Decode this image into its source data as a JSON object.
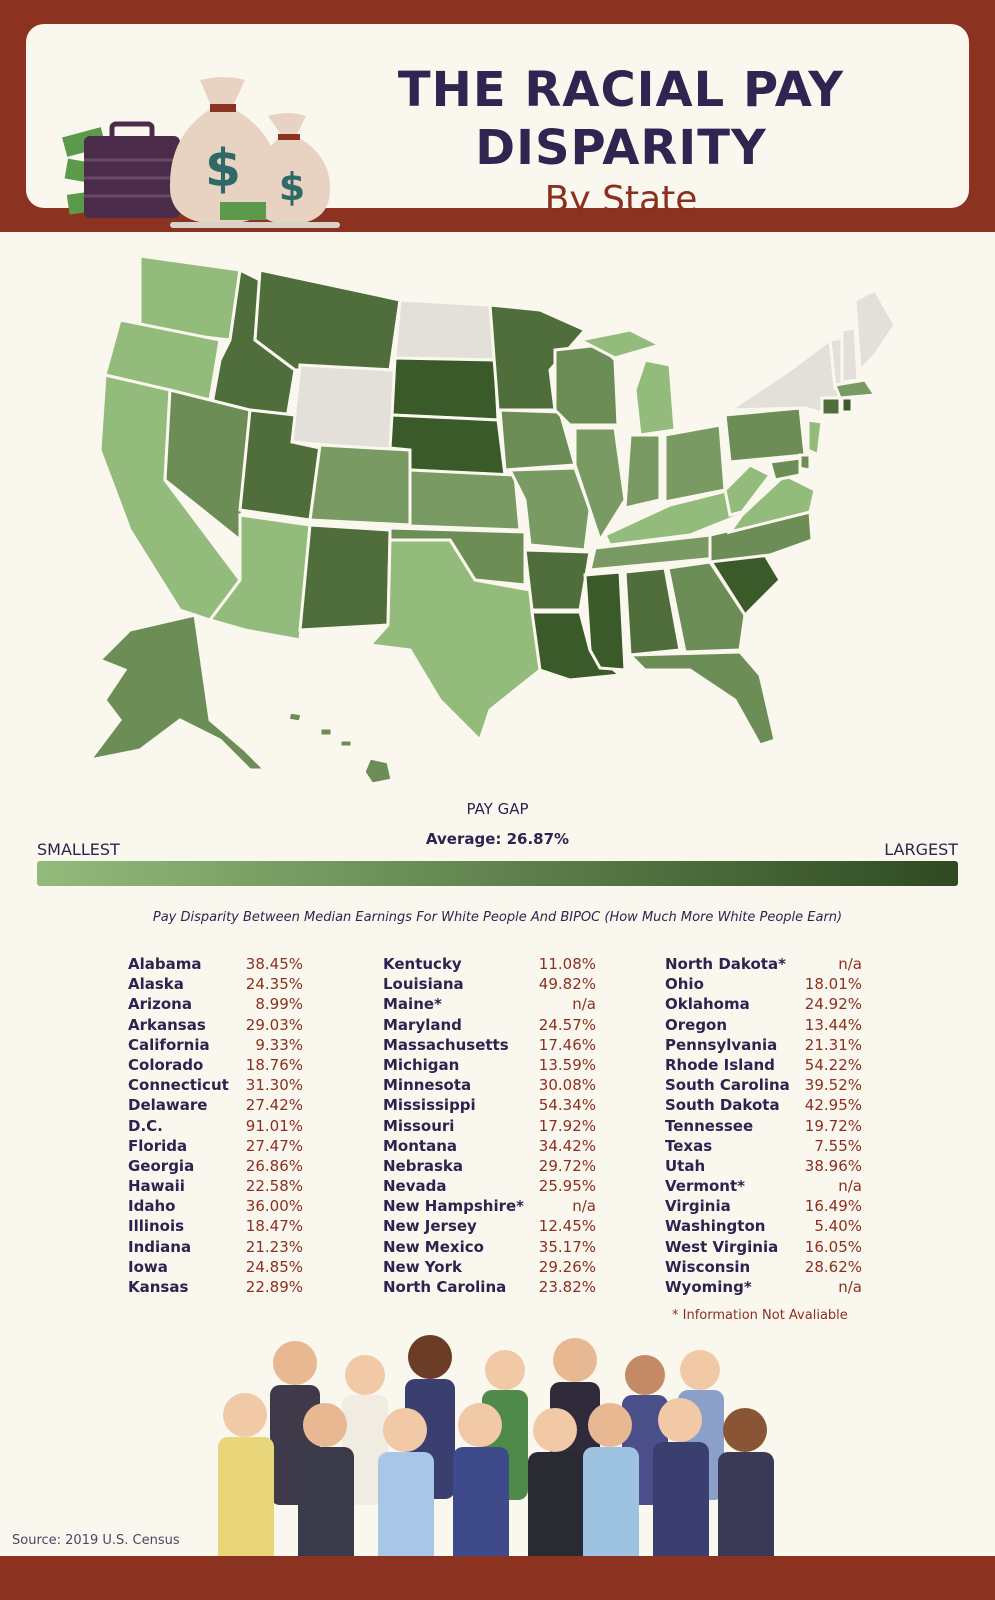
{
  "header": {
    "title_line1": "THE RACIAL PAY",
    "title_line2": "DISPARITY",
    "subtitle": "By State"
  },
  "legend": {
    "title": "PAY GAP",
    "average": "Average: 26.87%",
    "low_label": "SMALLEST",
    "high_label": "LARGEST",
    "low_color": "#93bb7b",
    "high_color": "#2f4a22",
    "na_color": "#e3e0d9"
  },
  "caption": "Pay Disparity Between Median Earnings For White People And BIPOC (How Much More White People Earn)",
  "states": [
    {
      "name": "Alabama",
      "value": "38.45%"
    },
    {
      "name": "Alaska",
      "value": "24.35%"
    },
    {
      "name": "Arizona",
      "value": "8.99%"
    },
    {
      "name": "Arkansas",
      "value": "29.03%"
    },
    {
      "name": "California",
      "value": "9.33%"
    },
    {
      "name": "Colorado",
      "value": "18.76%"
    },
    {
      "name": "Connecticut",
      "value": "31.30%"
    },
    {
      "name": "Delaware",
      "value": "27.42%"
    },
    {
      "name": "D.C.",
      "value": "91.01%"
    },
    {
      "name": "Florida",
      "value": "27.47%"
    },
    {
      "name": "Georgia",
      "value": "26.86%"
    },
    {
      "name": "Hawaii",
      "value": "22.58%"
    },
    {
      "name": "Idaho",
      "value": "36.00%"
    },
    {
      "name": "Illinois",
      "value": "18.47%"
    },
    {
      "name": "Indiana",
      "value": "21.23%"
    },
    {
      "name": "Iowa",
      "value": "24.85%"
    },
    {
      "name": "Kansas",
      "value": "22.89%"
    },
    {
      "name": "Kentucky",
      "value": "11.08%"
    },
    {
      "name": "Louisiana",
      "value": "49.82%"
    },
    {
      "name": "Maine*",
      "value": "n/a"
    },
    {
      "name": "Maryland",
      "value": "24.57%"
    },
    {
      "name": "Massachusetts",
      "value": "17.46%"
    },
    {
      "name": "Michigan",
      "value": "13.59%"
    },
    {
      "name": "Minnesota",
      "value": "30.08%"
    },
    {
      "name": "Mississippi",
      "value": "54.34%"
    },
    {
      "name": "Missouri",
      "value": "17.92%"
    },
    {
      "name": "Montana",
      "value": "34.42%"
    },
    {
      "name": "Nebraska",
      "value": "29.72%"
    },
    {
      "name": "Nevada",
      "value": "25.95%"
    },
    {
      "name": "New Hampshire*",
      "value": "n/a"
    },
    {
      "name": "New Jersey",
      "value": "12.45%"
    },
    {
      "name": "New Mexico",
      "value": "35.17%"
    },
    {
      "name": "New York",
      "value": "29.26%"
    },
    {
      "name": "North Carolina",
      "value": "23.82%"
    },
    {
      "name": "North Dakota*",
      "value": "n/a"
    },
    {
      "name": "Ohio",
      "value": "18.01%"
    },
    {
      "name": "Oklahoma",
      "value": "24.92%"
    },
    {
      "name": "Oregon",
      "value": "13.44%"
    },
    {
      "name": "Pennsylvania",
      "value": "21.31%"
    },
    {
      "name": "Rhode Island",
      "value": "54.22%"
    },
    {
      "name": "South Carolina",
      "value": "39.52%"
    },
    {
      "name": "South Dakota",
      "value": "42.95%"
    },
    {
      "name": "Tennessee",
      "value": "19.72%"
    },
    {
      "name": "Texas",
      "value": "7.55%"
    },
    {
      "name": "Utah",
      "value": "38.96%"
    },
    {
      "name": "Vermont*",
      "value": "n/a"
    },
    {
      "name": "Virginia",
      "value": "16.49%"
    },
    {
      "name": "Washington",
      "value": "5.40%"
    },
    {
      "name": "West Virginia",
      "value": "16.05%"
    },
    {
      "name": "Wisconsin",
      "value": "28.62%"
    },
    {
      "name": "Wyoming*",
      "value": "n/a"
    }
  ],
  "footnote": "* Information Not Avaliable",
  "source": "Source: 2019 U.S. Census"
}
